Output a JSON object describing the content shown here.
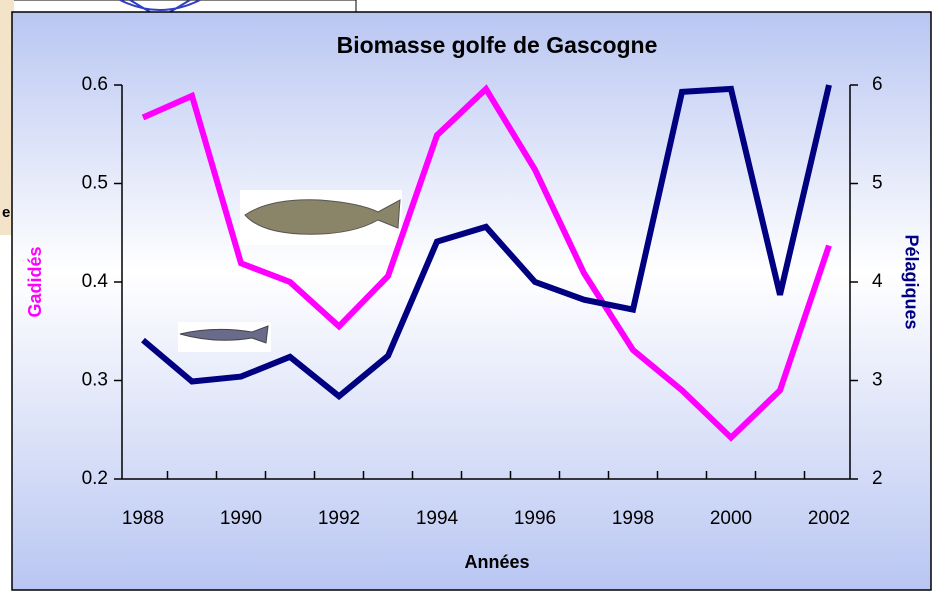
{
  "background_fragment": "e",
  "chart_data": {
    "type": "line",
    "title": "Biomasse golfe de Gascogne",
    "x_label": "Années",
    "y_label": "Gadidés",
    "y2_label": "Pélagiques",
    "categories": [
      "1988",
      null,
      "1990",
      null,
      "1992",
      null,
      "1994",
      null,
      "1996",
      null,
      "1998",
      null,
      "2000",
      null,
      "2002"
    ],
    "ylim": [
      0.2,
      0.6
    ],
    "yticks": [
      0.2,
      0.3,
      0.4,
      0.5,
      0.6
    ],
    "y2lim": [
      2,
      6
    ],
    "y2ticks": [
      2,
      3,
      4,
      5,
      6
    ],
    "series": [
      {
        "name": "Gadidés",
        "color": "#ff00ff",
        "values": [
          0.567,
          0.589,
          0.419,
          0.4,
          0.355,
          0.406,
          0.549,
          0.596,
          0.514,
          0.409,
          0.331,
          0.29,
          0.242,
          0.29,
          0.437
        ]
      },
      {
        "name": "Pélagiques",
        "color": "#000080",
        "axis": "y2",
        "values": [
          3.41,
          2.99,
          3.04,
          3.24,
          2.84,
          3.25,
          4.41,
          4.56,
          4.0,
          3.82,
          3.72,
          5.93,
          5.96,
          3.87,
          6.0
        ]
      }
    ]
  }
}
